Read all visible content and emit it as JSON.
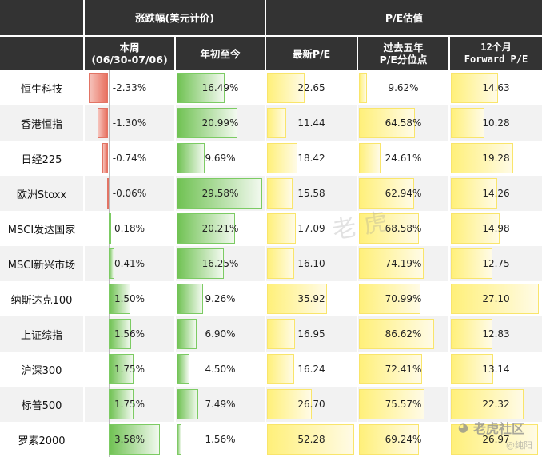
{
  "header": {
    "group_return": "涨跌幅(美元计价)",
    "group_pe": "P/E估值",
    "col_week_line1": "本周",
    "col_week_line2": "(06/30-07/06)",
    "col_ytd": "年初至今",
    "col_pe": "最新P/E",
    "col_pct_line1": "过去五年",
    "col_pct_line2": "P/E分位点",
    "col_fwd_line1": "12个月",
    "col_fwd_line2": "Forward P/E"
  },
  "colors": {
    "negative": "#e8705f",
    "positive": "#70c253",
    "valuation": "#fff07a",
    "header_bg": "#333333"
  },
  "rows": [
    {
      "name": "恒生科技",
      "week": "-2.33%",
      "week_v": -2.33,
      "ytd": "16.49%",
      "ytd_v": 16.49,
      "pe": "22.65",
      "pe_v": 22.65,
      "pct": "9.62%",
      "pct_v": 9.62,
      "fwd": "14.63",
      "fwd_v": 14.63
    },
    {
      "name": "香港恒指",
      "week": "-1.30%",
      "week_v": -1.3,
      "ytd": "20.99%",
      "ytd_v": 20.99,
      "pe": "11.44",
      "pe_v": 11.44,
      "pct": "64.58%",
      "pct_v": 64.58,
      "fwd": "10.28",
      "fwd_v": 10.28
    },
    {
      "name": "日经225",
      "week": "-0.74%",
      "week_v": -0.74,
      "ytd": "9.69%",
      "ytd_v": 9.69,
      "pe": "18.42",
      "pe_v": 18.42,
      "pct": "24.61%",
      "pct_v": 24.61,
      "fwd": "19.28",
      "fwd_v": 19.28
    },
    {
      "name": "欧洲Stoxx",
      "week": "-0.06%",
      "week_v": -0.06,
      "ytd": "29.58%",
      "ytd_v": 29.58,
      "pe": "15.58",
      "pe_v": 15.58,
      "pct": "62.94%",
      "pct_v": 62.94,
      "fwd": "14.26",
      "fwd_v": 14.26
    },
    {
      "name": "MSCI发达国家",
      "week": "0.18%",
      "week_v": 0.18,
      "ytd": "20.21%",
      "ytd_v": 20.21,
      "pe": "17.09",
      "pe_v": 17.09,
      "pct": "68.58%",
      "pct_v": 68.58,
      "fwd": "14.98",
      "fwd_v": 14.98
    },
    {
      "name": "MSCI新兴市场",
      "week": "0.41%",
      "week_v": 0.41,
      "ytd": "16.25%",
      "ytd_v": 16.25,
      "pe": "16.10",
      "pe_v": 16.1,
      "pct": "74.19%",
      "pct_v": 74.19,
      "fwd": "12.75",
      "fwd_v": 12.75
    },
    {
      "name": "纳斯达克100",
      "week": "1.50%",
      "week_v": 1.5,
      "ytd": "9.26%",
      "ytd_v": 9.26,
      "pe": "35.92",
      "pe_v": 35.92,
      "pct": "70.99%",
      "pct_v": 70.99,
      "fwd": "27.10",
      "fwd_v": 27.1
    },
    {
      "name": "上证综指",
      "week": "1.56%",
      "week_v": 1.56,
      "ytd": "6.90%",
      "ytd_v": 6.9,
      "pe": "16.95",
      "pe_v": 16.95,
      "pct": "86.62%",
      "pct_v": 86.62,
      "fwd": "12.83",
      "fwd_v": 12.83
    },
    {
      "name": "沪深300",
      "week": "1.75%",
      "week_v": 1.75,
      "ytd": "4.50%",
      "ytd_v": 4.5,
      "pe": "16.24",
      "pe_v": 16.24,
      "pct": "72.41%",
      "pct_v": 72.41,
      "fwd": "13.14",
      "fwd_v": 13.14
    },
    {
      "name": "标普500",
      "week": "1.75%",
      "week_v": 1.75,
      "ytd": "7.49%",
      "ytd_v": 7.49,
      "pe": "26.70",
      "pe_v": 26.7,
      "pct": "75.57%",
      "pct_v": 75.57,
      "fwd": "22.32",
      "fwd_v": 22.32
    },
    {
      "name": "罗素2000",
      "week": "3.58%",
      "week_v": 3.58,
      "ytd": "1.56%",
      "ytd_v": 1.56,
      "pe": "52.28",
      "pe_v": 52.28,
      "pct": "69.24%",
      "pct_v": 69.24,
      "fwd": "26.97",
      "fwd_v": 26.97
    }
  ],
  "watermark": {
    "logo_text": "老虎社区",
    "sub_text": "@纯阳"
  }
}
